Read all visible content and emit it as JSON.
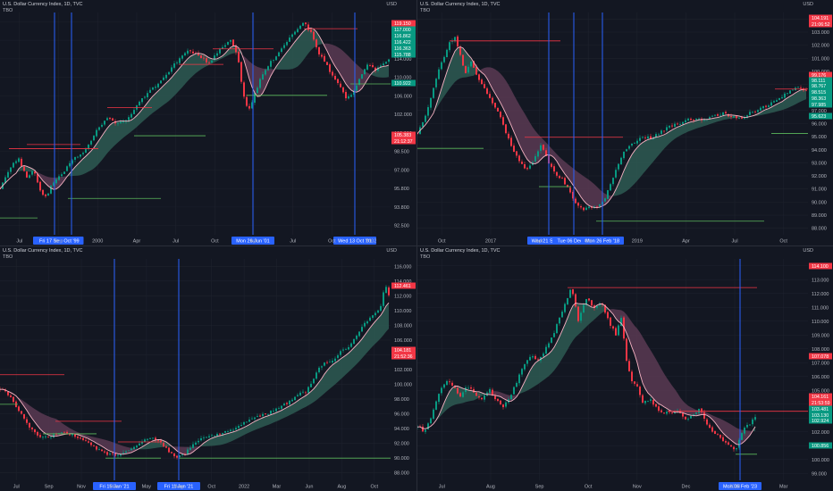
{
  "colors": {
    "background": "#131722",
    "grid": "#1e222d",
    "axis_text": "#b2b5be",
    "candle_up": "#089981",
    "candle_down": "#f23645",
    "ma_line": "#f7b3c3",
    "cloud_bull": "#2e5b52",
    "cloud_bear": "#5a3a52",
    "level_red": "#f23645",
    "level_green": "#5cb85c",
    "vline": "#2962ff"
  },
  "chart_data": [
    {
      "type": "candlestick",
      "panel": "top-left",
      "title": "U.S. Dollar Currency Index, 1D, TVC",
      "indicator": "TBO",
      "currency": "USD",
      "ylim": [
        91.5,
        124.5
      ],
      "y_ticks": [
        "122.000",
        "118.000",
        "114.000",
        "110.000",
        "106.000",
        "102.000",
        "100.000",
        "98.500",
        "97.000",
        "95.800",
        "93.800",
        "92.500"
      ],
      "x_ticks": [
        "Jul",
        "Sep",
        "2000",
        "Apr",
        "Jul",
        "Oct",
        "Apr",
        "Jul",
        "Oct",
        "2002"
      ],
      "x_highlights": [
        "Fri 17 Sep '99",
        "Oct '99",
        "Mon 26 Jun '01",
        "Wed 13 Oct '01"
      ],
      "price_labels": [
        {
          "value": "119.150",
          "color": "#f23645"
        },
        {
          "value": "117.000",
          "color": "#089981"
        },
        {
          "value": "116.862",
          "color": "#089981"
        },
        {
          "value": "116.422",
          "color": "#089981"
        },
        {
          "value": "116.363",
          "color": "#089981"
        },
        {
          "value": "115.788",
          "color": "#089981"
        },
        {
          "value": "105.383",
          "color": "#f23645"
        },
        {
          "value": "21:12:37",
          "color": "#f23645"
        },
        {
          "value": "110.922",
          "color": "#089981"
        }
      ],
      "anchors": [
        [
          0,
          98.5
        ],
        [
          10,
          101
        ],
        [
          20,
          103
        ],
        [
          30,
          100
        ],
        [
          38,
          101
        ],
        [
          45,
          98
        ],
        [
          52,
          97
        ],
        [
          58,
          99
        ],
        [
          66,
          100
        ],
        [
          75,
          101.5
        ],
        [
          85,
          103
        ],
        [
          95,
          104
        ],
        [
          108,
          107
        ],
        [
          120,
          109
        ],
        [
          130,
          108
        ],
        [
          142,
          108.5
        ],
        [
          155,
          111
        ],
        [
          168,
          113
        ],
        [
          178,
          114
        ],
        [
          190,
          116
        ],
        [
          200,
          117.5
        ],
        [
          212,
          119
        ],
        [
          222,
          118
        ],
        [
          234,
          117
        ],
        [
          246,
          119
        ],
        [
          258,
          120.5
        ],
        [
          266,
          118
        ],
        [
          272,
          112.5
        ],
        [
          278,
          110
        ],
        [
          284,
          112
        ],
        [
          292,
          115
        ],
        [
          302,
          117
        ],
        [
          312,
          118.5
        ],
        [
          322,
          120.5
        ],
        [
          332,
          122
        ],
        [
          340,
          123
        ],
        [
          348,
          121.5
        ],
        [
          356,
          118.5
        ],
        [
          364,
          117
        ],
        [
          372,
          115
        ],
        [
          380,
          113.5
        ],
        [
          388,
          111.5
        ],
        [
          396,
          113
        ],
        [
          404,
          115
        ],
        [
          412,
          117
        ],
        [
          420,
          116
        ],
        [
          428,
          117
        ],
        [
          436,
          117.5
        ]
      ],
      "levels": [
        {
          "value": 104.3,
          "x0": 10,
          "x1": 110,
          "color": "red"
        },
        {
          "value": 104.9,
          "x0": 30,
          "x1": 90,
          "color": "red"
        },
        {
          "value": 110.4,
          "x0": 120,
          "x1": 170,
          "color": "red"
        },
        {
          "value": 116.8,
          "x0": 200,
          "x1": 250,
          "color": "red"
        },
        {
          "value": 119.1,
          "x0": 238,
          "x1": 306,
          "color": "red"
        },
        {
          "value": 122.1,
          "x0": 340,
          "x1": 400,
          "color": "red"
        },
        {
          "value": 96.9,
          "x0": 76,
          "x1": 180,
          "color": "green"
        },
        {
          "value": 106.2,
          "x0": 150,
          "x1": 230,
          "color": "green"
        },
        {
          "value": 112.2,
          "x0": 276,
          "x1": 366,
          "color": "green"
        },
        {
          "value": 113.9,
          "x0": 392,
          "x1": 437,
          "color": "green"
        },
        {
          "value": 94.0,
          "x0": 0,
          "x1": 42,
          "color": "green"
        }
      ]
    },
    {
      "type": "candlestick",
      "panel": "top-right",
      "title": "U.S. Dollar Currency Index, 1D, TVC",
      "indicator": "TBO",
      "currency": "USD",
      "ylim": [
        87.5,
        105.5
      ],
      "y_ticks": [
        "104.000",
        "103.000",
        "102.000",
        "101.000",
        "100.000",
        "99.000",
        "98.000",
        "97.000",
        "96.000",
        "95.000",
        "94.000",
        "93.000",
        "92.000",
        "91.000",
        "90.000",
        "89.000",
        "88.000"
      ],
      "x_ticks": [
        "Oct",
        "2017",
        "Apr",
        "Oct",
        "2019",
        "Apr",
        "Jul",
        "Oct"
      ],
      "x_highlights": [
        "Wed 21 Sep '16",
        "Tue 06 Dec '16",
        "Mon 26 Feb '18"
      ],
      "price_labels": [
        {
          "value": "104.191",
          "color": "#f23645"
        },
        {
          "value": "21:06:52",
          "color": "#f23645"
        },
        {
          "value": "99.176",
          "color": "#f23645"
        },
        {
          "value": "98.111",
          "color": "#089981"
        },
        {
          "value": "98.767",
          "color": "#089981"
        },
        {
          "value": "98.515",
          "color": "#089981"
        },
        {
          "value": "98.363",
          "color": "#089981"
        },
        {
          "value": "97.985",
          "color": "#089981"
        },
        {
          "value": "95.623",
          "color": "#089981"
        }
      ],
      "anchors": [
        [
          0,
          95.8
        ],
        [
          8,
          96.8
        ],
        [
          15,
          98.5
        ],
        [
          22,
          100.5
        ],
        [
          30,
          102
        ],
        [
          36,
          103
        ],
        [
          42,
          103.5
        ],
        [
          48,
          102
        ],
        [
          54,
          100.5
        ],
        [
          60,
          101.5
        ],
        [
          66,
          100.5
        ],
        [
          74,
          99.5
        ],
        [
          82,
          98.5
        ],
        [
          90,
          97.5
        ],
        [
          98,
          96
        ],
        [
          106,
          94.5
        ],
        [
          114,
          93.5
        ],
        [
          122,
          92.8
        ],
        [
          130,
          93.5
        ],
        [
          138,
          94.8
        ],
        [
          146,
          93.5
        ],
        [
          154,
          92.5
        ],
        [
          162,
          92
        ],
        [
          170,
          91
        ],
        [
          178,
          90
        ],
        [
          186,
          89.6
        ],
        [
          194,
          89.8
        ],
        [
          202,
          89.7
        ],
        [
          210,
          90.5
        ],
        [
          218,
          92
        ],
        [
          226,
          93.5
        ],
        [
          234,
          94.5
        ],
        [
          242,
          95
        ],
        [
          252,
          95.5
        ],
        [
          262,
          95.3
        ],
        [
          272,
          95.8
        ],
        [
          282,
          96.3
        ],
        [
          292,
          96.5
        ],
        [
          302,
          96.8
        ],
        [
          312,
          96.9
        ],
        [
          322,
          96.8
        ],
        [
          332,
          97.1
        ],
        [
          342,
          97.3
        ],
        [
          352,
          97.1
        ],
        [
          362,
          96.8
        ],
        [
          370,
          97.3
        ],
        [
          380,
          97.6
        ],
        [
          390,
          97.9
        ],
        [
          400,
          98.3
        ],
        [
          410,
          98.8
        ],
        [
          418,
          99.2
        ],
        [
          428,
          99.4
        ],
        [
          436,
          99.2
        ]
      ],
      "levels": [
        {
          "value": 103.2,
          "x0": 36,
          "x1": 160,
          "color": "red"
        },
        {
          "value": 95.4,
          "x0": 120,
          "x1": 230,
          "color": "red"
        },
        {
          "value": 99.3,
          "x0": 400,
          "x1": 437,
          "color": "red"
        },
        {
          "value": 94.5,
          "x0": 0,
          "x1": 74,
          "color": "green"
        },
        {
          "value": 91.4,
          "x0": 136,
          "x1": 172,
          "color": "green"
        },
        {
          "value": 88.6,
          "x0": 200,
          "x1": 388,
          "color": "green"
        },
        {
          "value": 95.7,
          "x0": 396,
          "x1": 437,
          "color": "green"
        }
      ]
    },
    {
      "type": "candlestick",
      "panel": "bottom-left",
      "title": "U.S. Dollar Currency Index, 1D, TVC",
      "indicator": "TBO",
      "currency": "USD",
      "ylim": [
        87,
        117
      ],
      "y_ticks": [
        "116.000",
        "114.000",
        "112.000",
        "110.000",
        "108.000",
        "106.000",
        "104.000",
        "102.000",
        "100.000",
        "98.000",
        "96.000",
        "94.000",
        "92.000",
        "90.000",
        "88.000"
      ],
      "x_ticks": [
        "Jul",
        "Sep",
        "Nov",
        "Mar",
        "May",
        "Aug",
        "Oct",
        "2022",
        "Mar",
        "Jun",
        "Aug",
        "Oct"
      ],
      "x_highlights": [
        "Fri 15 Jan '21",
        "Fri 11 Jun '21"
      ],
      "price_labels": [
        {
          "value": "112.461",
          "color": "#f23645"
        },
        {
          "value": "104.181",
          "color": "#f23645"
        },
        {
          "value": "21:52:36",
          "color": "#f23645"
        }
      ],
      "anchors": [
        [
          0,
          99.5
        ],
        [
          10,
          98.5
        ],
        [
          18,
          97
        ],
        [
          26,
          95.5
        ],
        [
          34,
          94
        ],
        [
          42,
          93
        ],
        [
          52,
          92.8
        ],
        [
          62,
          93.2
        ],
        [
          72,
          93.5
        ],
        [
          82,
          93.2
        ],
        [
          92,
          92.5
        ],
        [
          102,
          91.8
        ],
        [
          112,
          91
        ],
        [
          122,
          90.5
        ],
        [
          132,
          90.3
        ],
        [
          142,
          90.8
        ],
        [
          150,
          91.5
        ],
        [
          158,
          92.2
        ],
        [
          166,
          92.8
        ],
        [
          174,
          92.5
        ],
        [
          182,
          91.8
        ],
        [
          190,
          90.8
        ],
        [
          198,
          90.2
        ],
        [
          206,
          90.5
        ],
        [
          214,
          91.6
        ],
        [
          222,
          92.4
        ],
        [
          232,
          92.8
        ],
        [
          242,
          93.2
        ],
        [
          252,
          93.5
        ],
        [
          262,
          94
        ],
        [
          272,
          94.8
        ],
        [
          282,
          95.5
        ],
        [
          292,
          95.8
        ],
        [
          302,
          96.2
        ],
        [
          312,
          96.8
        ],
        [
          322,
          97.5
        ],
        [
          332,
          98.5
        ],
        [
          342,
          99
        ],
        [
          350,
          100.5
        ],
        [
          358,
          102.5
        ],
        [
          366,
          103
        ],
        [
          374,
          103.5
        ],
        [
          382,
          104.5
        ],
        [
          390,
          105
        ],
        [
          398,
          106.5
        ],
        [
          406,
          108
        ],
        [
          414,
          109
        ],
        [
          420,
          109.5
        ],
        [
          426,
          110.5
        ],
        [
          431,
          113.5
        ],
        [
          435,
          112
        ],
        [
          437,
          112.4
        ]
      ],
      "levels": [
        {
          "value": 101.3,
          "x0": 0,
          "x1": 72,
          "color": "red"
        },
        {
          "value": 95.0,
          "x0": 62,
          "x1": 136,
          "color": "red"
        },
        {
          "value": 92.2,
          "x0": 132,
          "x1": 180,
          "color": "red"
        },
        {
          "value": 97.3,
          "x0": 0,
          "x1": 20,
          "color": "green"
        },
        {
          "value": 93.3,
          "x0": 48,
          "x1": 108,
          "color": "green"
        },
        {
          "value": 90.0,
          "x0": 118,
          "x1": 180,
          "color": "green"
        },
        {
          "value": 90.0,
          "x0": 200,
          "x1": 437,
          "color": "green"
        }
      ]
    },
    {
      "type": "candlestick",
      "panel": "bottom-right",
      "title": "U.S. Dollar Currency Index, 1D, TVC",
      "indicator": "TBO",
      "currency": "USD",
      "ylim": [
        99.3,
        116.3
      ],
      "y_ticks": [
        "114.000",
        "113.000",
        "112.000",
        "111.000",
        "110.000",
        "109.000",
        "108.000",
        "107.000",
        "106.000",
        "105.000",
        "104.000",
        "103.000",
        "102.000",
        "101.000",
        "100.000",
        "99.000"
      ],
      "x_ticks": [
        "Jul",
        "Aug",
        "Sep",
        "Oct",
        "Nov",
        "Dec",
        "2023",
        "Mar"
      ],
      "x_highlights": [
        "Mon 06 Feb '23"
      ],
      "price_labels": [
        {
          "value": "114.100",
          "color": "#f23645"
        },
        {
          "value": "107.078",
          "color": "#f23645"
        },
        {
          "value": "104.161",
          "color": "#f23645"
        },
        {
          "value": "21:53:59",
          "color": "#f23645"
        },
        {
          "value": "103.481",
          "color": "#089981"
        },
        {
          "value": "103.130",
          "color": "#089981"
        },
        {
          "value": "102.924",
          "color": "#089981"
        },
        {
          "value": "100.856",
          "color": "#089981"
        }
      ],
      "anchors": [
        [
          0,
          103.5
        ],
        [
          8,
          103
        ],
        [
          16,
          104.2
        ],
        [
          24,
          106
        ],
        [
          32,
          107
        ],
        [
          40,
          106.5
        ],
        [
          48,
          105.8
        ],
        [
          56,
          106.5
        ],
        [
          64,
          106
        ],
        [
          72,
          105.5
        ],
        [
          80,
          106.3
        ],
        [
          88,
          105.5
        ],
        [
          96,
          105
        ],
        [
          104,
          105.8
        ],
        [
          112,
          107
        ],
        [
          120,
          108.3
        ],
        [
          128,
          108.9
        ],
        [
          136,
          108.5
        ],
        [
          144,
          109.5
        ],
        [
          152,
          110.5
        ],
        [
          160,
          112
        ],
        [
          168,
          113.2
        ],
        [
          172,
          114.3
        ],
        [
          176,
          113
        ],
        [
          180,
          111.5
        ],
        [
          184,
          112.5
        ],
        [
          190,
          113.3
        ],
        [
          198,
          112.5
        ],
        [
          206,
          112.9
        ],
        [
          214,
          111.5
        ],
        [
          222,
          110.5
        ],
        [
          228,
          111.8
        ],
        [
          234,
          108.5
        ],
        [
          240,
          107
        ],
        [
          246,
          106.5
        ],
        [
          252,
          105.2
        ],
        [
          260,
          105.5
        ],
        [
          268,
          104.8
        ],
        [
          276,
          104.5
        ],
        [
          284,
          104.5
        ],
        [
          292,
          104.6
        ],
        [
          300,
          104
        ],
        [
          308,
          104.3
        ],
        [
          316,
          104.8
        ],
        [
          324,
          103.5
        ],
        [
          332,
          103
        ],
        [
          340,
          102.5
        ],
        [
          348,
          102
        ],
        [
          356,
          101.5
        ],
        [
          360,
          102.5
        ],
        [
          364,
          103.2
        ],
        [
          370,
          103.5
        ],
        [
          376,
          104
        ],
        [
          380,
          104.3
        ]
      ],
      "levels": [
        {
          "value": 114.1,
          "x0": 168,
          "x1": 380,
          "color": "red"
        },
        {
          "value": 104.6,
          "x0": 280,
          "x1": 437,
          "color": "red"
        },
        {
          "value": 101.3,
          "x0": 356,
          "x1": 380,
          "color": "green"
        }
      ]
    }
  ]
}
